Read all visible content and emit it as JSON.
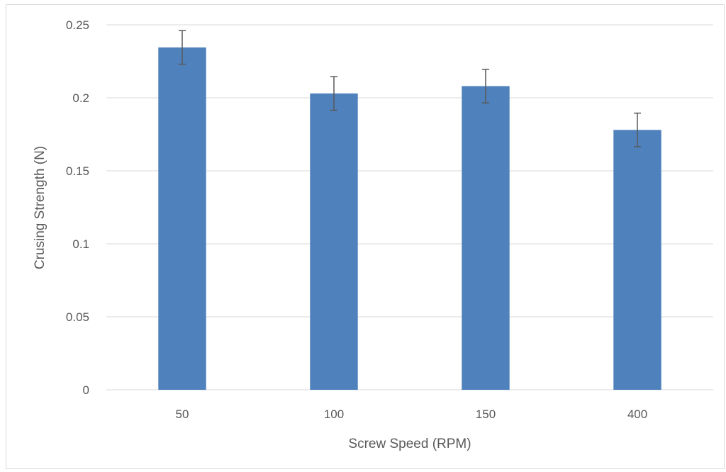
{
  "chart_data": {
    "type": "bar",
    "title": "",
    "xlabel": "Screw Speed (RPM)",
    "ylabel": "Crusing Strength (N)",
    "categories": [
      "50",
      "100",
      "150",
      "400"
    ],
    "series": [
      {
        "values": [
          0.2345,
          0.203,
          0.208,
          0.178
        ],
        "errors": [
          0.0115,
          0.0115,
          0.0115,
          0.0115
        ],
        "color": "#4f81bd"
      }
    ],
    "ylim": [
      0,
      0.25
    ],
    "yticks": [
      "0",
      "0.05",
      "0.1",
      "0.15",
      "0.2",
      "0.25"
    ],
    "ytick_values": [
      0,
      0.05,
      0.1,
      0.15,
      0.2,
      0.25
    ],
    "grid": true,
    "legend": "none",
    "gridline_color": "#d9d9d9",
    "error_bar_color": "#595959"
  }
}
